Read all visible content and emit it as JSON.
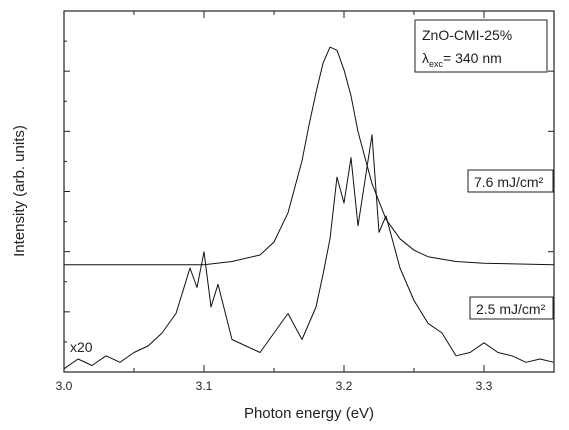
{
  "chart_data": {
    "type": "line",
    "xlabel": "Photon energy (eV)",
    "ylabel": "Intensity (arb. units)",
    "xlim": [
      3.0,
      3.35
    ],
    "x_ticks": [
      "3.0",
      "3.1",
      "3.2",
      "3.3"
    ],
    "y_tick_labels_shown": false,
    "legend": {
      "position": "top-right",
      "line1": "ZnO-CMI-25%",
      "line2_prefix": "λ",
      "line2_subscript": "exc",
      "line2_suffix": "= 340 nm"
    },
    "annotations": {
      "multiplier": "x20"
    },
    "series": [
      {
        "name": "7.6 mJ/cm²",
        "x": [
          3.0,
          3.05,
          3.1,
          3.12,
          3.14,
          3.15,
          3.16,
          3.17,
          3.175,
          3.18,
          3.185,
          3.19,
          3.195,
          3.2,
          3.205,
          3.21,
          3.22,
          3.23,
          3.24,
          3.25,
          3.26,
          3.28,
          3.3,
          3.35
        ],
        "y": [
          0.33,
          0.33,
          0.33,
          0.34,
          0.36,
          0.4,
          0.49,
          0.65,
          0.76,
          0.86,
          0.95,
          1.0,
          0.99,
          0.93,
          0.85,
          0.74,
          0.58,
          0.47,
          0.41,
          0.375,
          0.355,
          0.34,
          0.335,
          0.33
        ]
      },
      {
        "name": "2.5 mJ/cm²",
        "x": [
          3.0,
          3.01,
          3.02,
          3.03,
          3.04,
          3.05,
          3.06,
          3.07,
          3.08,
          3.085,
          3.09,
          3.095,
          3.1,
          3.105,
          3.11,
          3.12,
          3.13,
          3.14,
          3.15,
          3.16,
          3.17,
          3.18,
          3.185,
          3.19,
          3.195,
          3.2,
          3.205,
          3.21,
          3.215,
          3.22,
          3.225,
          3.23,
          3.24,
          3.25,
          3.26,
          3.27,
          3.28,
          3.29,
          3.3,
          3.31,
          3.32,
          3.33,
          3.34,
          3.35
        ],
        "y": [
          0.01,
          0.04,
          0.02,
          0.05,
          0.03,
          0.06,
          0.08,
          0.12,
          0.18,
          0.25,
          0.32,
          0.26,
          0.37,
          0.2,
          0.27,
          0.1,
          0.08,
          0.06,
          0.12,
          0.18,
          0.1,
          0.2,
          0.3,
          0.41,
          0.6,
          0.52,
          0.66,
          0.45,
          0.59,
          0.73,
          0.43,
          0.48,
          0.32,
          0.22,
          0.15,
          0.12,
          0.05,
          0.06,
          0.09,
          0.06,
          0.05,
          0.03,
          0.04,
          0.03
        ]
      }
    ],
    "series_labels": [
      "7.6 mJ/cm²",
      "2.5 mJ/cm²"
    ]
  }
}
